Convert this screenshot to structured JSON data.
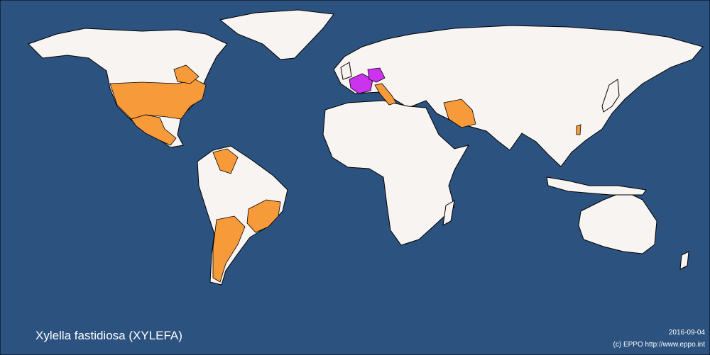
{
  "title": "Xylella fastidiosa (XYLEFA)",
  "date": "2016-09-04",
  "credit": "(c) EPPO http://www.eppo.int"
}
